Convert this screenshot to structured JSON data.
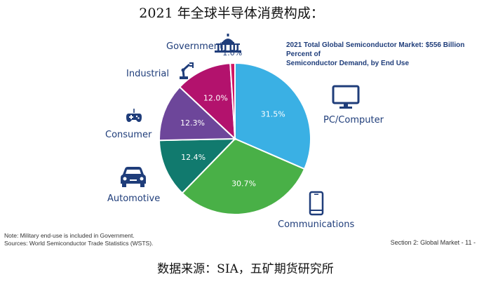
{
  "header": {
    "title": "2021 年全球半导体消费构成："
  },
  "chart_data": {
    "type": "pie",
    "title": "2021 Total Global Semiconductor Market: $556 Billion Percent of Semiconductor Demand, by End Use",
    "slices": [
      {
        "name": "PC/Computer",
        "value": 31.5,
        "label": "31.5%",
        "color": "#3ab0e4"
      },
      {
        "name": "Communications",
        "value": 30.7,
        "label": "30.7%",
        "color": "#49b047"
      },
      {
        "name": "Automotive",
        "value": 12.4,
        "label": "12.4%",
        "color": "#117a6e"
      },
      {
        "name": "Consumer",
        "value": 12.3,
        "label": "12.3%",
        "color": "#6d469a"
      },
      {
        "name": "Industrial",
        "value": 12.0,
        "label": "12.0%",
        "color": "#b3126d"
      },
      {
        "name": "Government",
        "value": 1.0,
        "label": "1.0%",
        "color": "#d01864"
      }
    ]
  },
  "chart_title_lines": [
    "2021 Total Global Semiconductor Market: $556 Billion Percent of",
    "Semiconductor Demand, by End Use"
  ],
  "icons": {
    "pc": "monitor-icon",
    "communications": "phone-icon",
    "automotive": "car-icon",
    "consumer": "gamepad-icon",
    "industrial": "robot-arm-icon",
    "government": "capitol-icon"
  },
  "notes": {
    "line1": "Note: Military end-use is included in Government.",
    "line2": "Sources: World Semiconductor Trade Statistics (WSTS)."
  },
  "page_ref": "Section 2: Global Market - 11 -",
  "source": "数据来源：SIA，五矿期货研究所"
}
